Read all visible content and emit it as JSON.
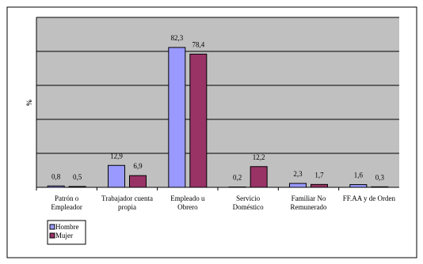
{
  "chart_data": {
    "type": "bar",
    "y_label": "%",
    "categories": [
      "Patrón  o\nEmpleador",
      "Trabajador cuenta\npropia",
      "Empleado u\nObrero",
      "Servicio\nDoméstico",
      "Familiar No\nRemunerado",
      "FF.AA y de Orden"
    ],
    "series": [
      {
        "name": "Hombre",
        "color": "#9999ff",
        "values": [
          0.8,
          12.9,
          82.3,
          0.2,
          2.3,
          1.6
        ],
        "value_labels": [
          "0,8",
          "12,9",
          "82,3",
          "0,2",
          "2,3",
          "1,6"
        ]
      },
      {
        "name": "Mujer",
        "color": "#993366",
        "values": [
          0.5,
          6.9,
          78.4,
          12.2,
          1.7,
          0.3
        ],
        "value_labels": [
          "0,5",
          "6,9",
          "78,4",
          "12,2",
          "1,7",
          "0,3"
        ]
      }
    ],
    "ylim": [
      0,
      100
    ],
    "yticks": [
      0,
      20,
      40,
      60,
      80,
      100
    ],
    "grid": true,
    "plot_background": "#c0c0c0"
  }
}
